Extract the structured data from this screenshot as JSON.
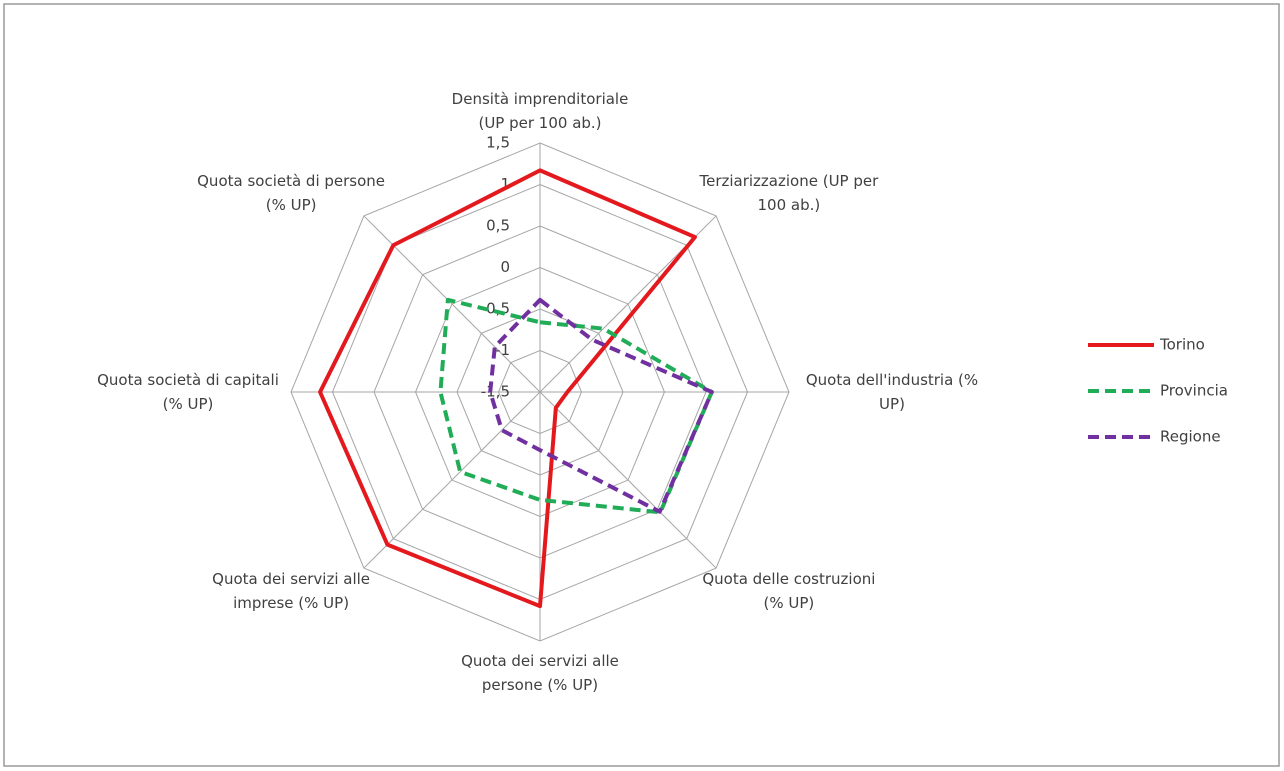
{
  "chart_data": {
    "type": "radar",
    "categories": [
      "Densità imprenditoriale (UP per 100 ab.)",
      "Terziarizzazione (UP per 100 ab.)",
      "Quota dell'industria (% UP)",
      "Quota delle costruzioni (% UP)",
      "Quota dei servizi alle persone (% UP)",
      "Quota dei servizi alle imprese (% UP)",
      "Quota società di capitali (% UP)",
      "Quota società di persone (% UP)"
    ],
    "series": [
      {
        "name": "Torino",
        "color": "#e3191e",
        "dash": "solid",
        "values": [
          1.17,
          1.14,
          -1.17,
          -1.23,
          1.08,
          1.1,
          1.15,
          1.0
        ]
      },
      {
        "name": "Provincia",
        "color": "#21ad57",
        "dash": "dashed",
        "values": [
          -0.66,
          -0.42,
          0.57,
          0.55,
          -0.2,
          -0.14,
          -0.3,
          0.07
        ]
      },
      {
        "name": "Regione",
        "color": "#7030a0",
        "dash": "dashed",
        "values": [
          -0.39,
          -0.61,
          0.57,
          0.54,
          -0.8,
          -0.85,
          -0.9,
          -0.73
        ]
      }
    ],
    "ylim": [
      -1.5,
      1.5
    ],
    "yticks": [
      {
        "value": -1.5,
        "label": "-1,5"
      },
      -1,
      {
        "value": -0.5,
        "label": "-0,5"
      },
      0,
      {
        "value": 0.5,
        "label": "0,5"
      },
      1,
      {
        "value": 1.5,
        "label": "1,5"
      }
    ],
    "legend": "right"
  }
}
